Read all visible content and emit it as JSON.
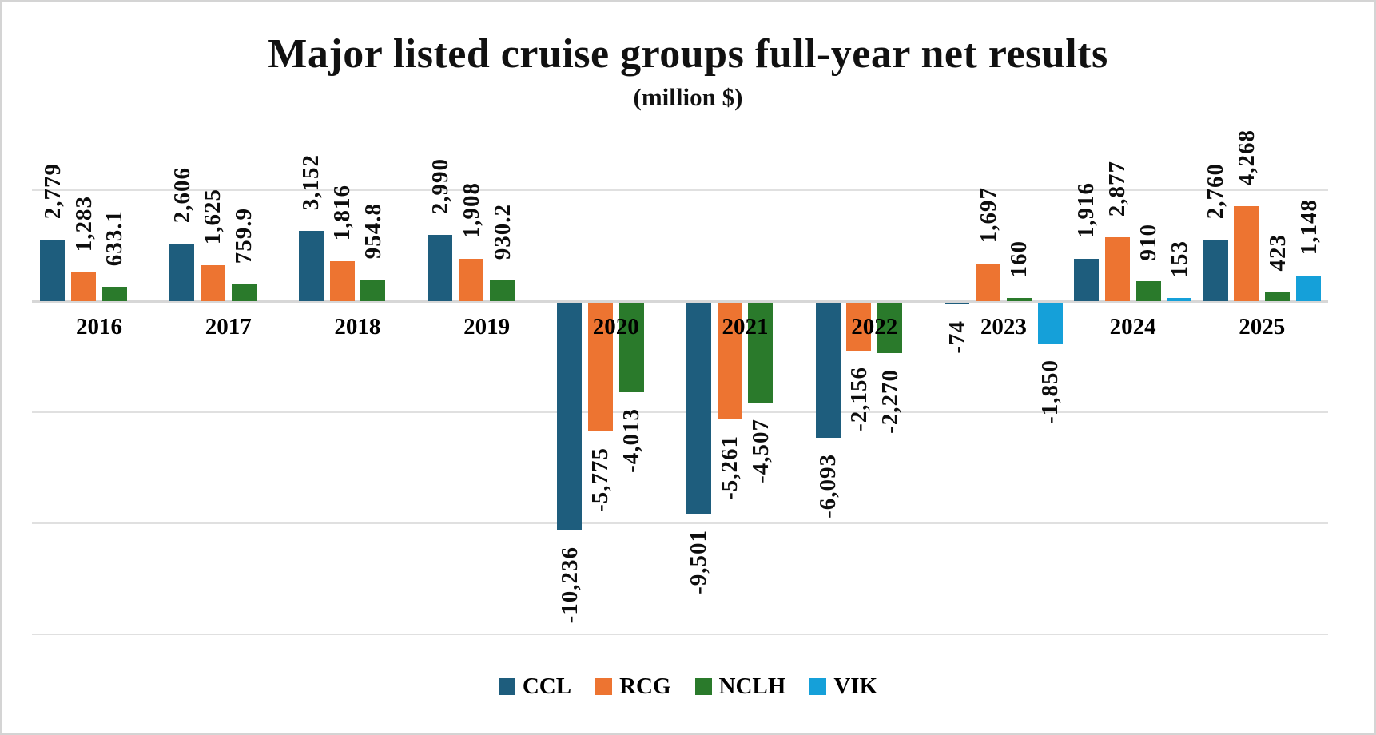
{
  "chart_data": {
    "type": "bar",
    "title": "Major listed cruise groups full-year net results",
    "subtitle": "(million $)",
    "categories": [
      "2016",
      "2017",
      "2018",
      "2019",
      "2020",
      "2021",
      "2022",
      "2023",
      "2024",
      "2025"
    ],
    "series": [
      {
        "name": "CCL",
        "color": "#1E5D7D",
        "values": [
          2779,
          2606,
          3152,
          2990,
          -10236,
          -9501,
          -6093,
          -74,
          1916,
          2760
        ]
      },
      {
        "name": "RCG",
        "color": "#ED7431",
        "values": [
          1283,
          1625,
          1816,
          1908,
          -5775,
          -5261,
          -2156,
          1697,
          2877,
          4268
        ]
      },
      {
        "name": "NCLH",
        "color": "#2A7A2B",
        "values": [
          633.1,
          759.9,
          954.8,
          930.2,
          -4013,
          -4507,
          -2270,
          160,
          910,
          423
        ]
      },
      {
        "name": "VIK",
        "color": "#15A0D9",
        "values": [
          null,
          null,
          null,
          null,
          null,
          null,
          null,
          -1850,
          153,
          1148
        ]
      }
    ],
    "value_labels": [
      [
        "2,779",
        "2,606",
        "3,152",
        "2,990",
        "-10,236",
        "-9,501",
        "-6,093",
        "-74",
        "1,916",
        "2,760"
      ],
      [
        "1,283",
        "1,625",
        "1,816",
        "1,908",
        "-5,775",
        "-5,261",
        "-2,156",
        "1,697",
        "2,877",
        "4,268"
      ],
      [
        "633.1",
        "759.9",
        "954.8",
        "930.2",
        "-4,013",
        "-4,507",
        "-2,270",
        "160",
        "910",
        "423"
      ],
      [
        null,
        null,
        null,
        null,
        null,
        null,
        null,
        "-1,850",
        "153",
        "1,148"
      ]
    ],
    "ylim": [
      -15000,
      5000
    ],
    "grid_interval": 5000,
    "gridline_values": [
      5000,
      0,
      -5000,
      -10000,
      -15000
    ],
    "grid_on": true,
    "legend_position": "bottom",
    "value_label_rotation": 90,
    "axis_labels_hidden": true
  }
}
